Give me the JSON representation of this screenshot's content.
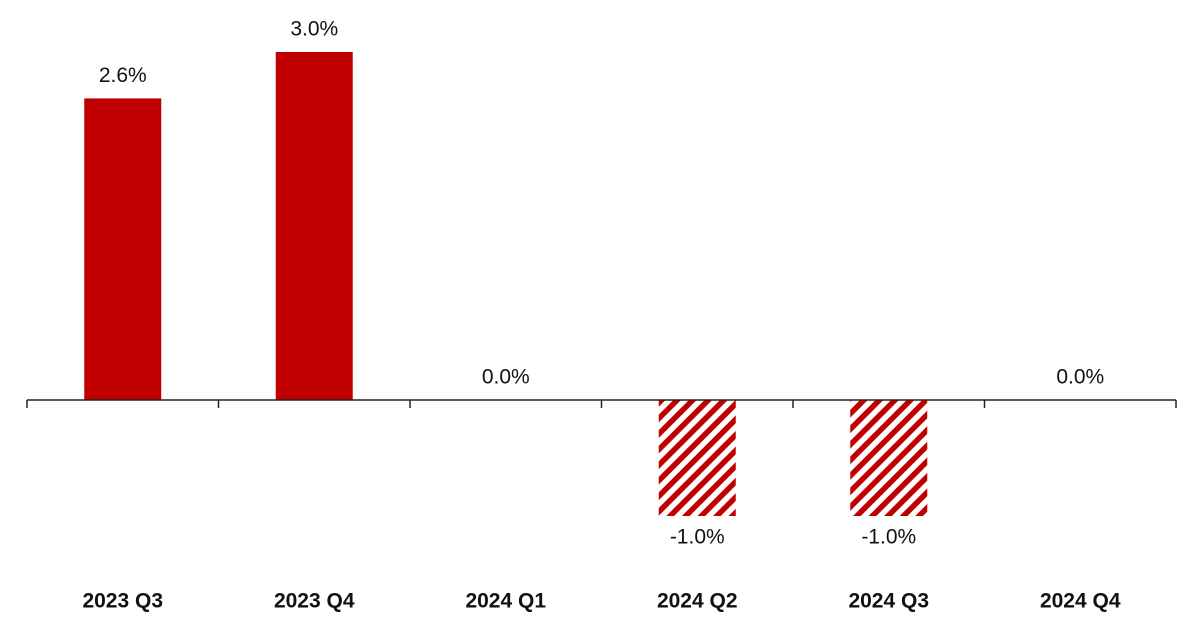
{
  "chart_data": {
    "type": "bar",
    "categories": [
      "2023 Q3",
      "2023 Q4",
      "2024 Q1",
      "2024 Q2",
      "2024 Q3",
      "2024 Q4"
    ],
    "values": [
      2.6,
      3.0,
      0.0,
      -1.0,
      -1.0,
      0.0
    ],
    "value_labels": [
      "2.6%",
      "3.0%",
      "0.0%",
      "-1.0%",
      "-1.0%",
      "0.0%"
    ],
    "hatched": [
      false,
      false,
      false,
      true,
      true,
      false
    ],
    "color": "#c00000",
    "ylim": [
      -1.0,
      3.0
    ],
    "grid": false
  }
}
